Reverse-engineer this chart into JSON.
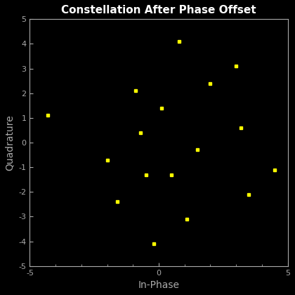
{
  "title": "Constellation After Phase Offset",
  "xlabel": "In-Phase",
  "ylabel": "Quadrature",
  "xlim": [
    -5,
    5
  ],
  "ylim": [
    -5,
    5
  ],
  "background_color": "#000000",
  "axes_color": "#000000",
  "spine_color": "#aaaaaa",
  "tick_color": "#aaaaaa",
  "label_color": "#aaaaaa",
  "title_color": "#ffffff",
  "marker_color": "#ffff00",
  "marker": "s",
  "marker_size": 3,
  "x": [
    -4.3,
    -2.0,
    -1.6,
    -0.9,
    -0.7,
    -0.5,
    -0.2,
    0.1,
    0.5,
    0.8,
    1.1,
    1.5,
    2.0,
    3.0,
    3.2,
    3.5,
    4.5
  ],
  "y": [
    1.1,
    -0.7,
    -2.4,
    2.1,
    0.4,
    -1.3,
    -4.1,
    1.4,
    -1.3,
    4.1,
    -3.1,
    -0.3,
    2.4,
    3.1,
    0.6,
    -2.1,
    -1.1
  ],
  "xtick_locs": [
    -5,
    0,
    5
  ],
  "ytick_locs": [
    -5,
    -4,
    -3,
    -2,
    -1,
    0,
    1,
    2,
    3,
    4,
    5
  ],
  "xtick_labels": [
    "-5",
    "0",
    "5"
  ],
  "ytick_labels": [
    "-5",
    "-4",
    "-3",
    "-2",
    "-1",
    "0",
    "1",
    "2",
    "3",
    "4",
    "5"
  ]
}
